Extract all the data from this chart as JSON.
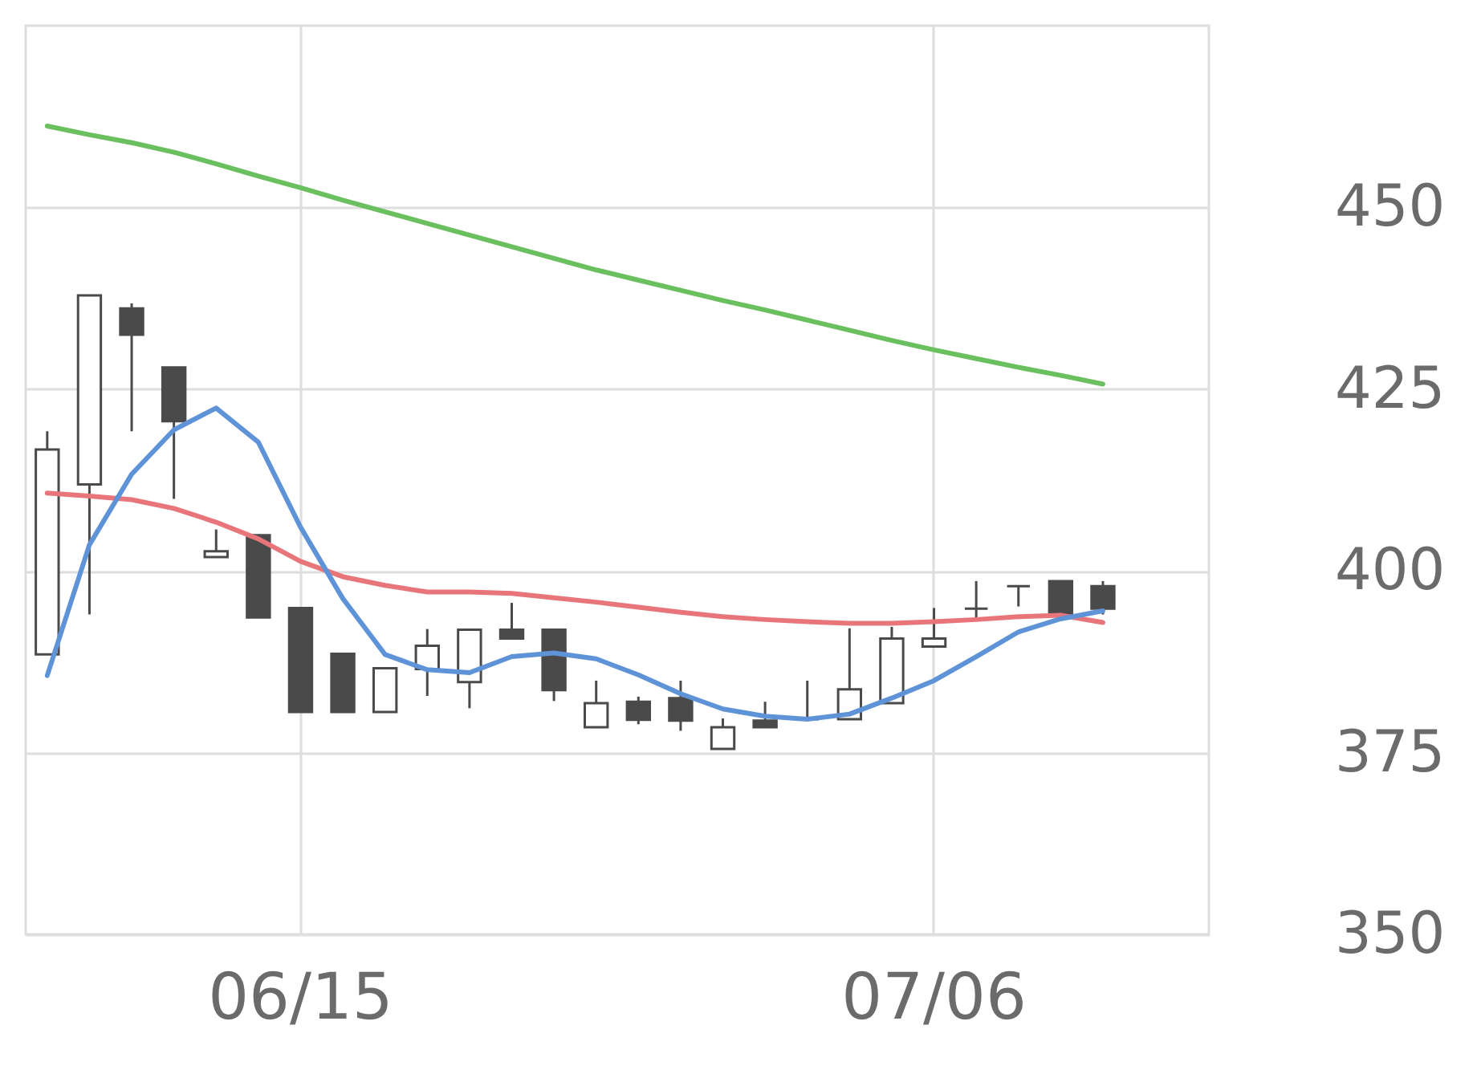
{
  "chart_data": {
    "type": "candlestick",
    "categories": [
      null,
      null,
      null,
      null,
      null,
      null,
      "06/15",
      null,
      null,
      null,
      null,
      null,
      null,
      null,
      null,
      null,
      null,
      null,
      null,
      null,
      null,
      "07/06",
      null,
      null,
      null,
      null,
      null,
      null
    ],
    "ohlc": [
      [
        388.5,
        419.2,
        388.5,
        416.7
      ],
      [
        411.9,
        437.9,
        394,
        437.9
      ],
      [
        436.1,
        436.8,
        419.2,
        432.5
      ],
      [
        428,
        428,
        409.9,
        420.6
      ],
      [
        401.9,
        405.7,
        401.9,
        402.7
      ],
      [
        404.9,
        404.9,
        393.6,
        393.6
      ],
      [
        394.9,
        394.9,
        380.6,
        380.6
      ],
      [
        388.6,
        388.6,
        380.6,
        380.6
      ],
      [
        380.6,
        386.6,
        380.6,
        386.6
      ],
      [
        386.5,
        392,
        382.8,
        389.7
      ],
      [
        384.7,
        391.9,
        381.1,
        391.9
      ],
      [
        391.9,
        395.6,
        390.7,
        390.7
      ],
      [
        391.9,
        391.9,
        382.1,
        383.6
      ],
      [
        378.5,
        384.9,
        378.5,
        381.8
      ],
      [
        382,
        382.7,
        378.9,
        379.5
      ],
      [
        382.5,
        384.9,
        378,
        379.4
      ],
      [
        375.5,
        379.7,
        375.5,
        378.5
      ],
      [
        379.4,
        382,
        378.5,
        378.5
      ],
      [
        379.6,
        384.9,
        379.6,
        379.6
      ],
      [
        379.6,
        392.1,
        379.6,
        383.7
      ],
      [
        381.8,
        392.3,
        381.8,
        390.7
      ],
      [
        389.6,
        394.9,
        389.6,
        390.7
      ],
      [
        394.8,
        398.6,
        393.6,
        394.8
      ],
      [
        397.9,
        397.9,
        395.1,
        397.9
      ],
      [
        398.6,
        398.6,
        394,
        394
      ],
      [
        397.9,
        398.6,
        394,
        394.8
      ],
      null,
      null
    ],
    "color": "#4a4a4a",
    "series": [
      {
        "type": "line",
        "color": "#6abf5e",
        "values": [
          461.2,
          460,
          458.9,
          457.6,
          456,
          454.3,
          452.7,
          451,
          449.4,
          447.8,
          446.2,
          444.6,
          443,
          441.4,
          440,
          438.6,
          437.2,
          435.9,
          434.5,
          433.1,
          431.7,
          430.4,
          429.2,
          428,
          426.9,
          425.7,
          null,
          null
        ]
      },
      {
        "type": "line",
        "color": "#e8757a",
        "values": [
          410.7,
          410.3,
          409.8,
          408.6,
          406.7,
          404.4,
          401.3,
          399.2,
          398,
          397.1,
          397.1,
          396.9,
          396.3,
          395.7,
          395,
          394.3,
          393.7,
          393.3,
          393,
          392.8,
          392.8,
          393,
          393.3,
          393.7,
          393.9,
          392.9,
          null,
          null
        ]
      },
      {
        "type": "line",
        "color": "#5f93d8",
        "values": [
          385.6,
          403.6,
          413.3,
          419.4,
          422.4,
          417.7,
          406,
          396.2,
          388.5,
          386.4,
          386,
          388.2,
          388.7,
          387.9,
          385.7,
          383.1,
          381,
          380,
          379.6,
          380.3,
          382.5,
          384.9,
          388.2,
          391.6,
          393.4,
          394.5,
          null,
          null
        ]
      }
    ],
    "ylim": [
      350,
      475
    ],
    "yticks": [
      350,
      375,
      400,
      425,
      450
    ],
    "grid": true
  }
}
